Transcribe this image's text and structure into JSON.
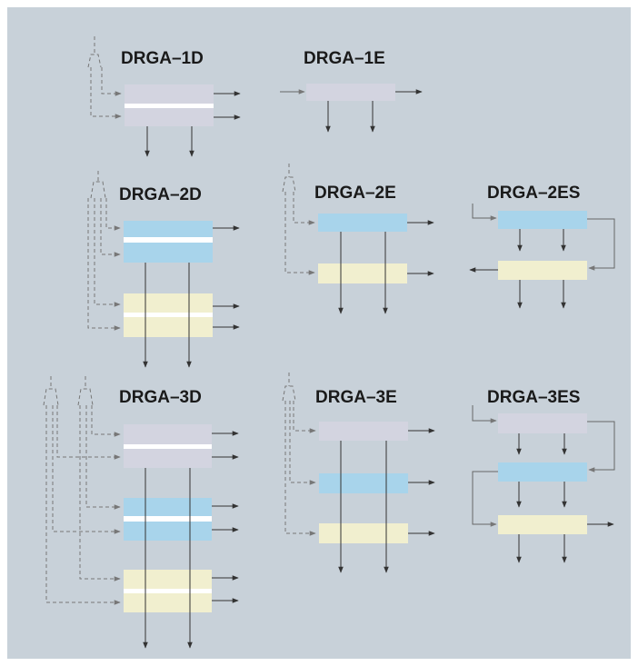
{
  "colors": {
    "background": "#c8d1d9",
    "border": "#ffffff",
    "stage_lavender": "#d3d4e0",
    "stage_blue": "#a8d4eb",
    "stage_yellow": "#f1efcf",
    "separator": "#ffffff",
    "line": "#333333"
  },
  "diagrams": {
    "drga_1d": {
      "label": "DRGA–1D"
    },
    "drga_1e": {
      "label": "DRGA–1E"
    },
    "drga_2d": {
      "label": "DRGA–2D"
    },
    "drga_2e": {
      "label": "DRGA–2E"
    },
    "drga_2es": {
      "label": "DRGA–2ES"
    },
    "drga_3d": {
      "label": "DRGA–3D"
    },
    "drga_3e": {
      "label": "DRGA–3E"
    },
    "drga_3es": {
      "label": "DRGA–3ES"
    }
  }
}
